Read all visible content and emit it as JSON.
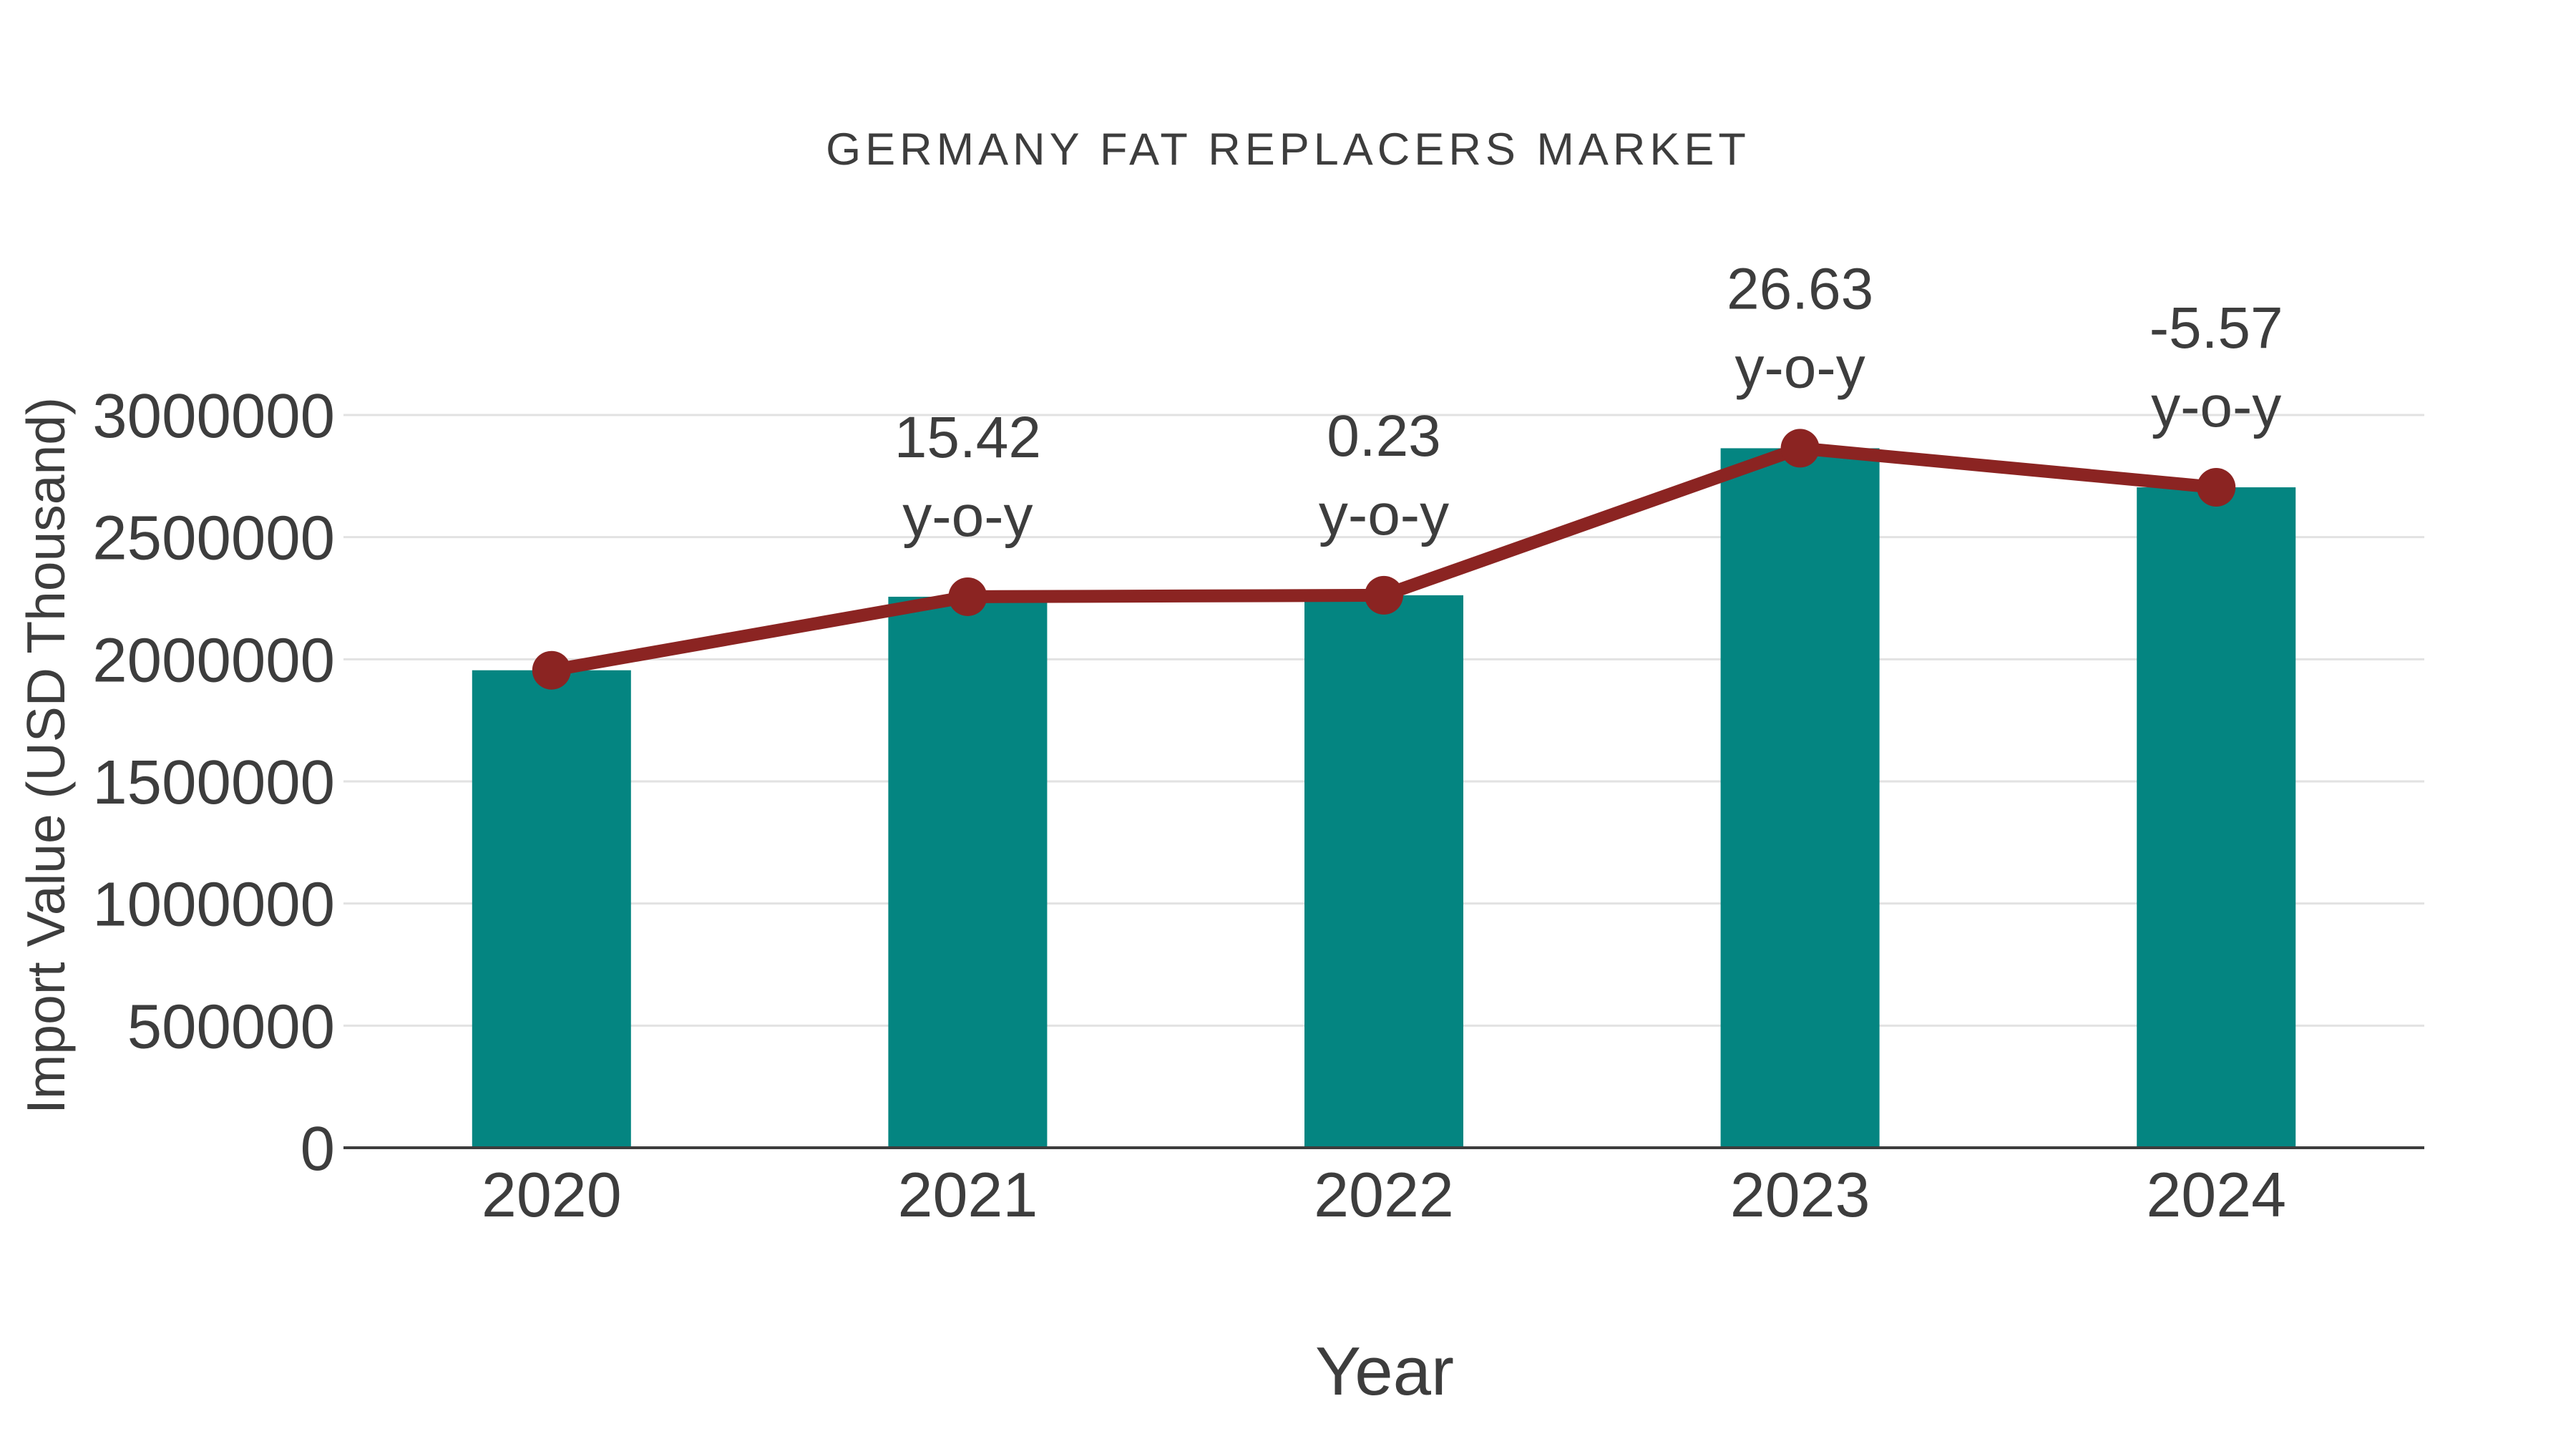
{
  "chart": {
    "title": "GERMANY FAT REPLACERS MARKET",
    "x_axis_title": "Year",
    "y_axis_title": "Import Value (USD Thousand)"
  },
  "chart_data": {
    "type": "bar",
    "title": "GERMANY FAT REPLACERS MARKET",
    "xlabel": "Year",
    "ylabel": "Import Value (USD Thousand)",
    "categories": [
      "2020",
      "2021",
      "2022",
      "2023",
      "2024"
    ],
    "series": [
      {
        "name": "Import Value (USD Thousand)",
        "type": "bar",
        "values": [
          1955000,
          2256000,
          2262000,
          2864000,
          2704000
        ]
      },
      {
        "name": "y-o-y change",
        "type": "line",
        "values": [
          1955000,
          2256000,
          2262000,
          2864000,
          2704000
        ],
        "point_labels": [
          null,
          "15.42",
          "0.23",
          "26.63",
          "-5.57"
        ],
        "label_suffix": "y-o-y"
      }
    ],
    "ylim": [
      0,
      3000000
    ],
    "y_ticks": [
      0,
      500000,
      1000000,
      1500000,
      2000000,
      2500000,
      3000000
    ],
    "grid": "horizontal",
    "legend": "none",
    "colors": {
      "bar": "#048581",
      "line": "#8b2422",
      "text": "#3d3d3d",
      "grid": "#e2e2e2"
    }
  }
}
